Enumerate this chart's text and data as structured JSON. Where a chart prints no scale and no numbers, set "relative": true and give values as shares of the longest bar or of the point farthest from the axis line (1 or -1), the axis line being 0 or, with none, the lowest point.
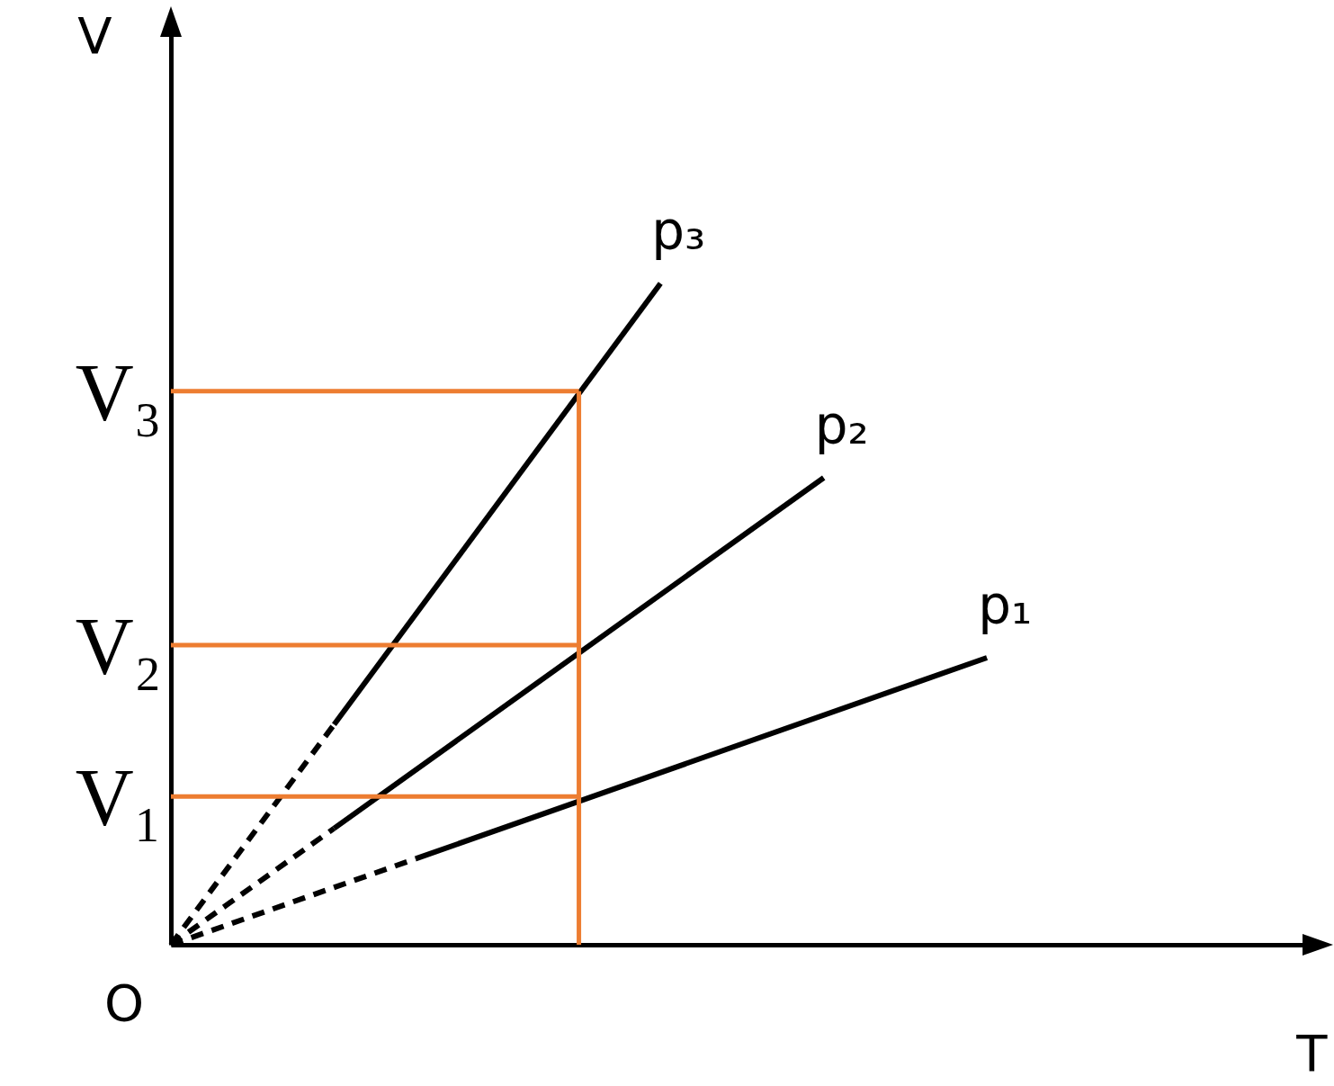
{
  "chart_data": {
    "type": "line",
    "relative": true,
    "xlabel": "T",
    "ylabel": "V",
    "categories": [
      null,
      null,
      null,
      null,
      null,
      null,
      null,
      null,
      null,
      null,
      null,
      null,
      null,
      null,
      null
    ],
    "series": [
      {
        "color": "#000000",
        "line_style": "dashed",
        "values": [
          0,
          null,
          0.333,
          null,
          null,
          null,
          null,
          null,
          null,
          null,
          null,
          null,
          null,
          null,
          null
        ]
      },
      {
        "name": "p₃",
        "color": "#000000",
        "line_style": "solid",
        "values": [
          null,
          null,
          0.333,
          null,
          null,
          null,
          1,
          null,
          null,
          null,
          null,
          null,
          null,
          null,
          null
        ]
      },
      {
        "color": "#000000",
        "line_style": "dashed",
        "values": [
          0,
          null,
          0.176,
          null,
          null,
          null,
          null,
          null,
          null,
          null,
          null,
          null,
          null,
          null,
          null
        ]
      },
      {
        "name": "p₂",
        "color": "#000000",
        "line_style": "solid",
        "values": [
          null,
          null,
          0.176,
          null,
          null,
          null,
          null,
          null,
          0.706,
          null,
          null,
          null,
          null,
          null,
          null
        ]
      },
      {
        "color": "#000000",
        "line_style": "dashed",
        "values": [
          0,
          null,
          null,
          0.13,
          null,
          null,
          null,
          null,
          null,
          null,
          null,
          null,
          null,
          null,
          null
        ]
      },
      {
        "name": "p₁",
        "color": "#000000",
        "line_style": "solid",
        "values": [
          null,
          null,
          null,
          0.13,
          null,
          null,
          null,
          null,
          null,
          null,
          0.434,
          null,
          null,
          null,
          null
        ]
      },
      {
        "color": "#ed7d31",
        "line_style": "solid",
        "values": [
          0.837,
          null,
          null,
          null,
          null,
          0.837,
          null,
          null,
          null,
          null,
          null,
          null,
          null,
          null,
          null
        ]
      },
      {
        "color": "#ed7d31",
        "line_style": "solid",
        "values": [
          0.453,
          null,
          null,
          null,
          null,
          0.453,
          null,
          null,
          null,
          null,
          null,
          null,
          null,
          null,
          null
        ]
      },
      {
        "color": "#ed7d31",
        "line_style": "solid",
        "values": [
          0.224,
          null,
          null,
          null,
          null,
          0.224,
          null,
          null,
          null,
          null,
          null,
          null,
          null,
          null,
          null
        ]
      }
    ],
    "annotations": [
      "V₃",
      "V₂",
      "V₁",
      "O"
    ]
  }
}
